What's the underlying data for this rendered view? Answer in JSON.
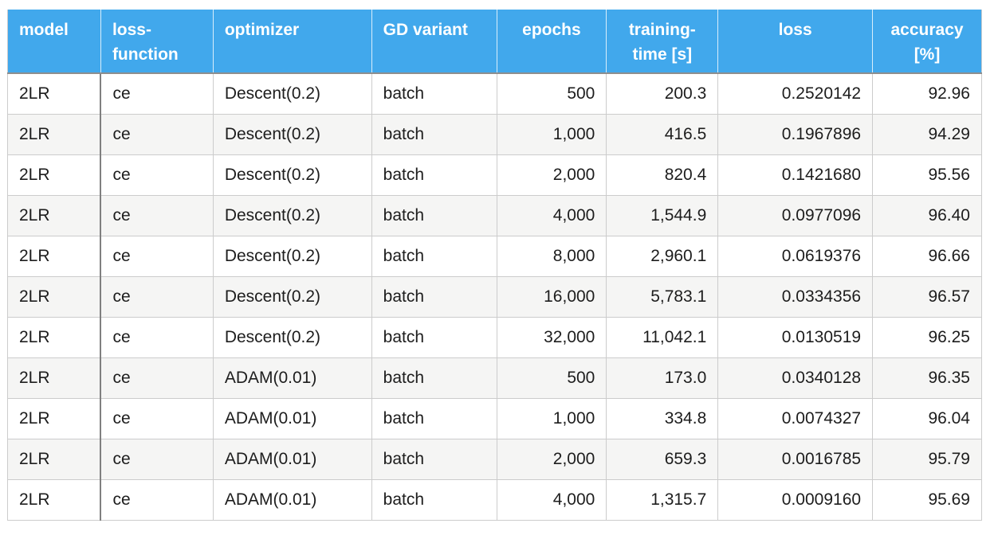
{
  "table": {
    "columns": [
      {
        "id": "model",
        "label": "model",
        "align": "left",
        "header_align": "left"
      },
      {
        "id": "loss_function",
        "label": "loss-\nfunction",
        "align": "left",
        "header_align": "left"
      },
      {
        "id": "optimizer",
        "label": "optimizer",
        "align": "left",
        "header_align": "left"
      },
      {
        "id": "gd_variant",
        "label": "GD variant",
        "align": "left",
        "header_align": "left"
      },
      {
        "id": "epochs",
        "label": "epochs",
        "align": "right",
        "header_align": "center"
      },
      {
        "id": "training_time",
        "label": "training-\ntime [s]",
        "align": "right",
        "header_align": "center"
      },
      {
        "id": "loss",
        "label": "loss",
        "align": "right",
        "header_align": "center"
      },
      {
        "id": "accuracy",
        "label": "accuracy\n[%]",
        "align": "right",
        "header_align": "center"
      }
    ],
    "rows": [
      [
        "2LR",
        "ce",
        "Descent(0.2)",
        "batch",
        "500",
        "200.3",
        "0.2520142",
        "92.96"
      ],
      [
        "2LR",
        "ce",
        "Descent(0.2)",
        "batch",
        "1,000",
        "416.5",
        "0.1967896",
        "94.29"
      ],
      [
        "2LR",
        "ce",
        "Descent(0.2)",
        "batch",
        "2,000",
        "820.4",
        "0.1421680",
        "95.56"
      ],
      [
        "2LR",
        "ce",
        "Descent(0.2)",
        "batch",
        "4,000",
        "1,544.9",
        "0.0977096",
        "96.40"
      ],
      [
        "2LR",
        "ce",
        "Descent(0.2)",
        "batch",
        "8,000",
        "2,960.1",
        "0.0619376",
        "96.66"
      ],
      [
        "2LR",
        "ce",
        "Descent(0.2)",
        "batch",
        "16,000",
        "5,783.1",
        "0.0334356",
        "96.57"
      ],
      [
        "2LR",
        "ce",
        "Descent(0.2)",
        "batch",
        "32,000",
        "11,042.1",
        "0.0130519",
        "96.25"
      ],
      [
        "2LR",
        "ce",
        "ADAM(0.01)",
        "batch",
        "500",
        "173.0",
        "0.0340128",
        "96.35"
      ],
      [
        "2LR",
        "ce",
        "ADAM(0.01)",
        "batch",
        "1,000",
        "334.8",
        "0.0074327",
        "96.04"
      ],
      [
        "2LR",
        "ce",
        "ADAM(0.01)",
        "batch",
        "2,000",
        "659.3",
        "0.0016785",
        "95.79"
      ],
      [
        "2LR",
        "ce",
        "ADAM(0.01)",
        "batch",
        "4,000",
        "1,315.7",
        "0.0009160",
        "95.69"
      ]
    ]
  },
  "colors": {
    "header_bg": "#41a8ec",
    "header_text": "#ffffff",
    "stripe": "#f5f5f4",
    "grid": "#cccccc",
    "dark_divider": "#7f7f7f",
    "header_border": "#8e8e8e",
    "body_text": "#1d1d1d"
  }
}
